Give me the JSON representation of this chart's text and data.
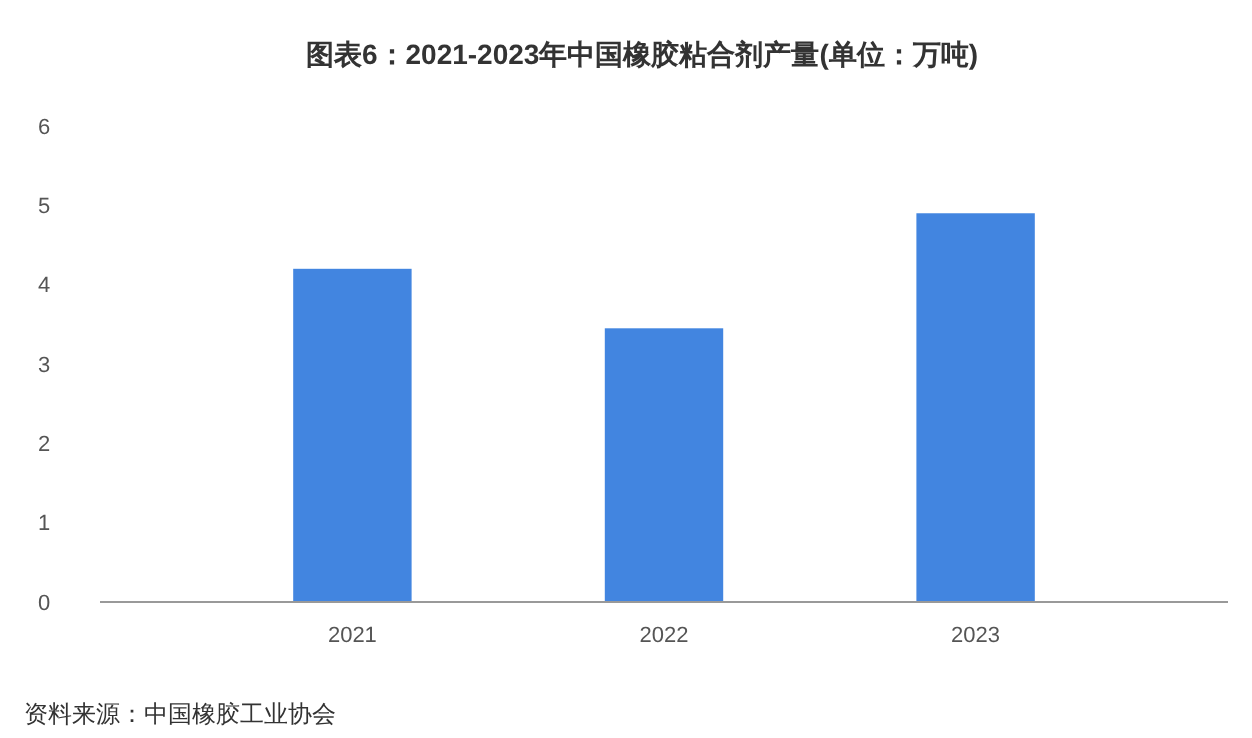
{
  "chart_data": {
    "type": "bar",
    "title": "图表6：2021-2023年中国橡胶粘合剂产量(单位：万吨)",
    "categories": [
      "2021",
      "2022",
      "2023"
    ],
    "values": [
      4.2,
      3.45,
      4.9
    ],
    "color": "#4285e0",
    "ylim": [
      0,
      6
    ],
    "yticks": [
      0,
      1,
      2,
      3,
      4,
      5,
      6
    ],
    "grid": false,
    "annotations": [
      "资料来源：中国橡胶工业协会"
    ]
  }
}
